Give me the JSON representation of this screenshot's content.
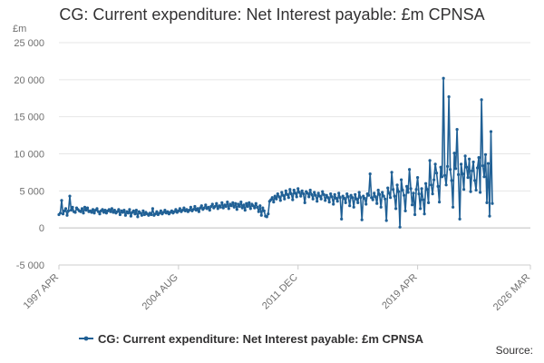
{
  "chart_data": {
    "type": "line",
    "title": "CG: Current expenditure: Net Interest payable: £m CPNSA",
    "ylabel": "£m",
    "xlabel": "",
    "ylim": [
      -5000,
      25000
    ],
    "yticks": [
      -5000,
      0,
      5000,
      10000,
      15000,
      20000,
      25000
    ],
    "ytick_labels": [
      "-5 000",
      "0",
      "5 000",
      "10 000",
      "15 000",
      "20 000",
      "25 000"
    ],
    "x_range": [
      "1997 APR",
      "2026 MAR"
    ],
    "xtick_labels": [
      "1997 APR",
      "2004 AUG",
      "2011 DEC",
      "2019 APR",
      "2026 MAR"
    ],
    "xtick_positions": [
      0,
      88,
      176,
      264,
      347
    ],
    "grid": true,
    "legend_position": "bottom",
    "series": [
      {
        "name": "CG: Current expenditure: Net Interest payable: £m CPNSA",
        "color": "#206095",
        "marker": "circle",
        "values": [
          1800,
          2000,
          3700,
          1900,
          2300,
          2600,
          1700,
          2300,
          4300,
          2400,
          2800,
          2200,
          2100,
          2700,
          2500,
          2300,
          2200,
          2600,
          2000,
          2800,
          2400,
          2700,
          2200,
          2300,
          2100,
          2500,
          2000,
          2400,
          2600,
          2200,
          1900,
          2300,
          2500,
          2100,
          2400,
          2000,
          2300,
          2500,
          2200,
          2600,
          2100,
          2400,
          2000,
          2200,
          2500,
          1800,
          2300,
          2100,
          2400,
          1700,
          2200,
          2000,
          2500,
          1600,
          2100,
          2300,
          1900,
          2400,
          1500,
          2200,
          2000,
          1700,
          2300,
          1800,
          2100,
          1900,
          1700,
          2000,
          1800,
          2600,
          1700,
          1900,
          2200,
          1800,
          2000,
          2300,
          1900,
          2100,
          2400,
          2000,
          2200,
          1900,
          2100,
          2300,
          2000,
          2200,
          2500,
          2100,
          2300,
          2600,
          2200,
          2400,
          2700,
          2300,
          2500,
          2200,
          2400,
          2800,
          2300,
          2500,
          2900,
          2400,
          2600,
          2200,
          2700,
          3000,
          2500,
          2700,
          3100,
          2600,
          2800,
          2400,
          2900,
          3200,
          2700,
          2900,
          3300,
          2600,
          3000,
          2800,
          3400,
          2700,
          3100,
          2900,
          3500,
          2600,
          3200,
          3000,
          3400,
          2800,
          3300,
          2500,
          3200,
          2900,
          3500,
          2700,
          3100,
          2400,
          3300,
          2900,
          3400,
          2600,
          3200,
          3000,
          2700,
          3300,
          2800,
          2200,
          3000,
          1700,
          2700,
          2300,
          1600,
          1500,
          1900,
          3600,
          3800,
          4100,
          3500,
          4300,
          3900,
          4600,
          4200,
          3700,
          4800,
          4400,
          3900,
          5000,
          4500,
          4100,
          5200,
          4600,
          3800,
          5100,
          4700,
          4200,
          5300,
          4800,
          4300,
          5000,
          4600,
          3400,
          4900,
          4700,
          4200,
          5100,
          4500,
          3900,
          4800,
          4400,
          3600,
          4700,
          4300,
          3900,
          4900,
          4500,
          3700,
          4400,
          4100,
          3500,
          4600,
          4200,
          3200,
          4500,
          4000,
          3600,
          4700,
          4100,
          1200,
          4300,
          4000,
          3400,
          4600,
          4200,
          3000,
          4400,
          4100,
          2800,
          4500,
          3900,
          3400,
          4800,
          4100,
          1100,
          4300,
          4000,
          3200,
          4600,
          4400,
          7300,
          4100,
          3800,
          4700,
          4200,
          3300,
          5100,
          4500,
          2800,
          4800,
          4300,
          3900,
          1000,
          5400,
          4700,
          4100,
          7500,
          5200,
          4300,
          2600,
          5800,
          4900,
          100,
          6500,
          5100,
          4400,
          2300,
          5600,
          4800,
          7900,
          5300,
          3100,
          4700,
          1800,
          5200,
          6800,
          4600,
          2600,
          5300,
          3800,
          1900,
          6000,
          5200,
          3400,
          9100,
          5800,
          4600,
          6500,
          8600,
          7400,
          5600,
          3500,
          8200,
          6900,
          20200,
          7100,
          5800,
          8300,
          17700,
          7900,
          6400,
          2800,
          10100,
          8000,
          13300,
          7200,
          1200,
          8600,
          7300,
          5200,
          9700,
          8200,
          6800,
          9300,
          4900,
          7700,
          8900,
          6400,
          5100,
          8100,
          9500,
          4800,
          17300,
          8400,
          6900,
          9900,
          3400,
          8700,
          1600,
          13000,
          3300
        ]
      }
    ]
  }
}
